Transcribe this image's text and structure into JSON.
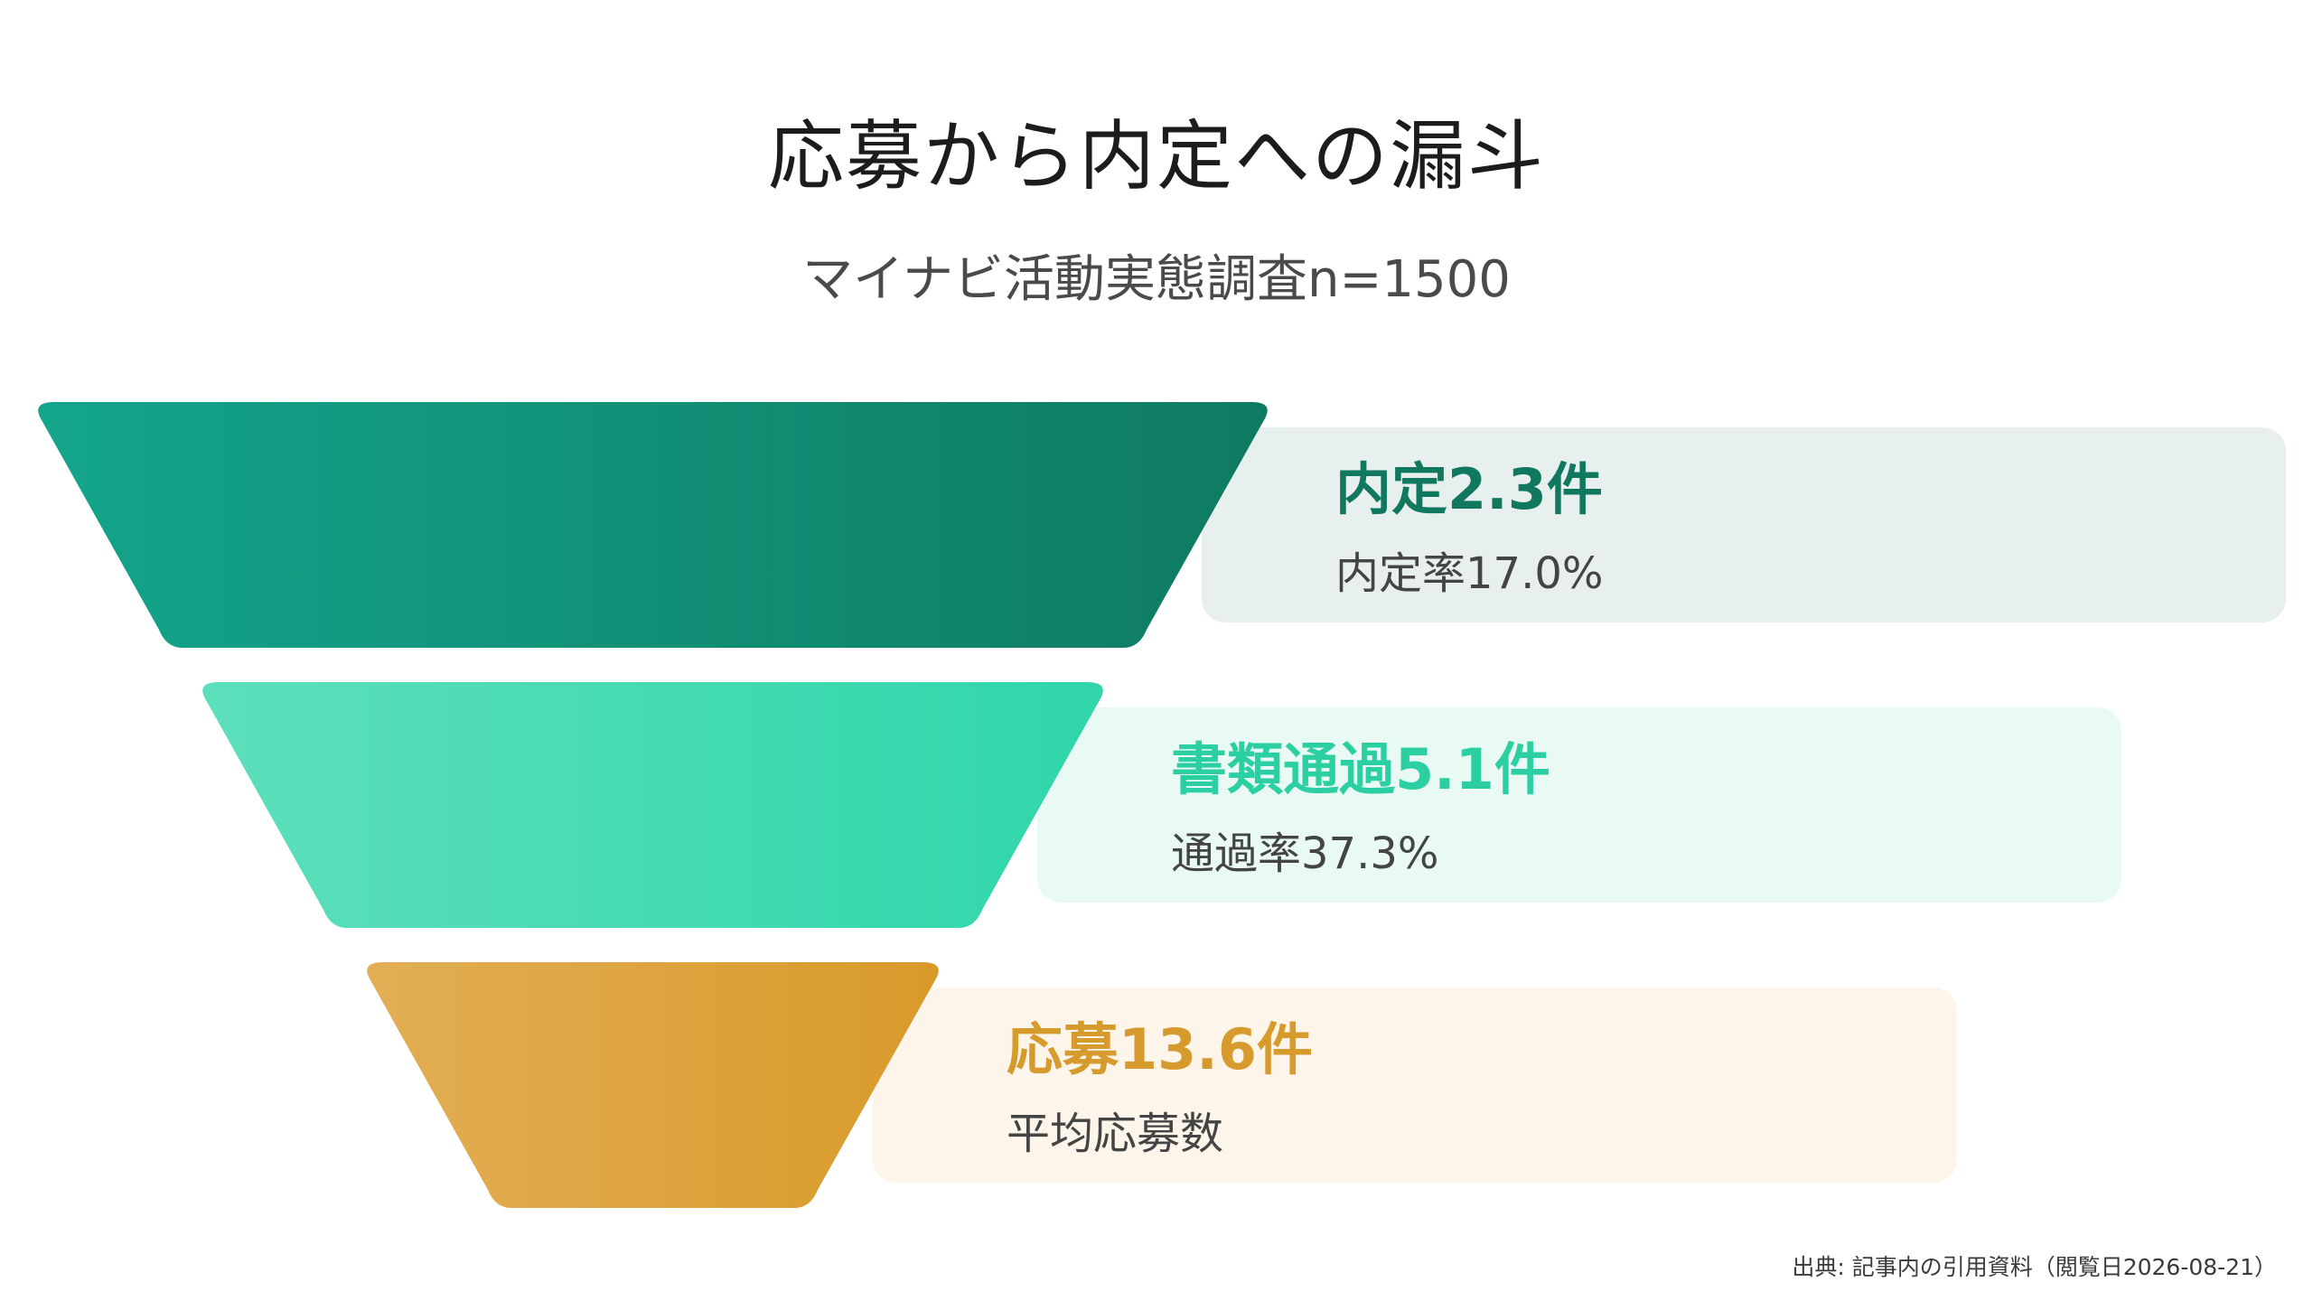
{
  "chart_data": {
    "type": "funnel",
    "title": "応募から内定への漏斗",
    "subtitle": "マイナビ活動実態調査n=1500",
    "stages": [
      {
        "label": "内定",
        "value": 2.3,
        "unit": "件",
        "display": "内定2.3件",
        "note": "内定率17.0%",
        "color_start": "#13a58b",
        "color_end": "#0f7a62",
        "text_color": "#10785f",
        "panel_color": "#e8f0ef"
      },
      {
        "label": "書類通過",
        "value": 5.1,
        "unit": "件",
        "display": "書類通過5.1件",
        "note": "通過率37.3%",
        "color_start": "#5ddfbb",
        "color_end": "#2fd6aa",
        "text_color": "#2ccfa2",
        "panel_color": "#e9faf4"
      },
      {
        "label": "応募",
        "value": 13.6,
        "unit": "件",
        "display": "応募13.6件",
        "note": "平均応募数",
        "color_start": "#e2ae55",
        "color_end": "#d99a2a",
        "text_color": "#d79a2c",
        "panel_color": "#fdf5ea"
      }
    ]
  },
  "source": "出典: 記事内の引用資料（閲覧日2026-08-21）"
}
